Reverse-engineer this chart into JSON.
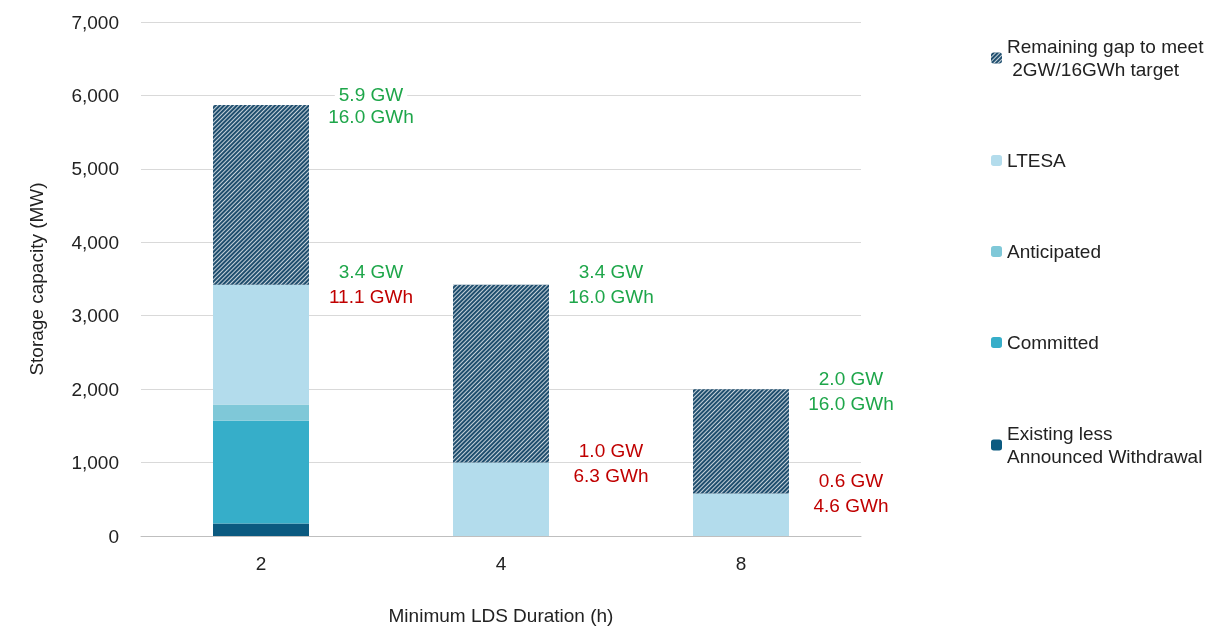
{
  "chart_data": {
    "type": "bar",
    "stacked": true,
    "xlabel": "Minimum LDS Duration (h)",
    "ylabel": "Storage capacity (MW)",
    "categories": [
      "2",
      "4",
      "8"
    ],
    "series": [
      {
        "name": "Existing less Announced Withdrawal",
        "color": "#0b5a80",
        "values": [
          170,
          0,
          0
        ]
      },
      {
        "name": "Committed",
        "color": "#36aec9",
        "values": [
          1400,
          0,
          0
        ]
      },
      {
        "name": "Anticipated",
        "color": "#7fc8d8",
        "values": [
          220,
          0,
          0
        ]
      },
      {
        "name": "LTESA",
        "color": "#b3dcec",
        "values": [
          1630,
          1000,
          580
        ]
      },
      {
        "name": "Remaining gap to meet 2GW/16GWh target",
        "color": "#1f4e6e",
        "values": [
          2450,
          2420,
          1420
        ]
      }
    ],
    "ylim": [
      0,
      7000
    ],
    "yticks": [
      {
        "value": 0,
        "label": "0"
      },
      {
        "value": 1000,
        "label": "1,000"
      },
      {
        "value": 2000,
        "label": "2,000"
      },
      {
        "value": 3000,
        "label": "3,000"
      },
      {
        "value": 4000,
        "label": "4,000"
      },
      {
        "value": 5000,
        "label": "5,000"
      },
      {
        "value": 6000,
        "label": "6,000"
      },
      {
        "value": 7000,
        "label": "7,000"
      }
    ],
    "grid": "y",
    "legend": "right",
    "annotations": [
      "5.9 GW",
      "16.0 GWh",
      "3.4 GW",
      "11.1 GWh",
      "3.4 GW",
      "16.0 GWh",
      "1.0 GW",
      "6.3 GWh",
      "2.0 GW",
      "16.0 GWh",
      "0.6 GW",
      "4.6 GWh"
    ]
  }
}
